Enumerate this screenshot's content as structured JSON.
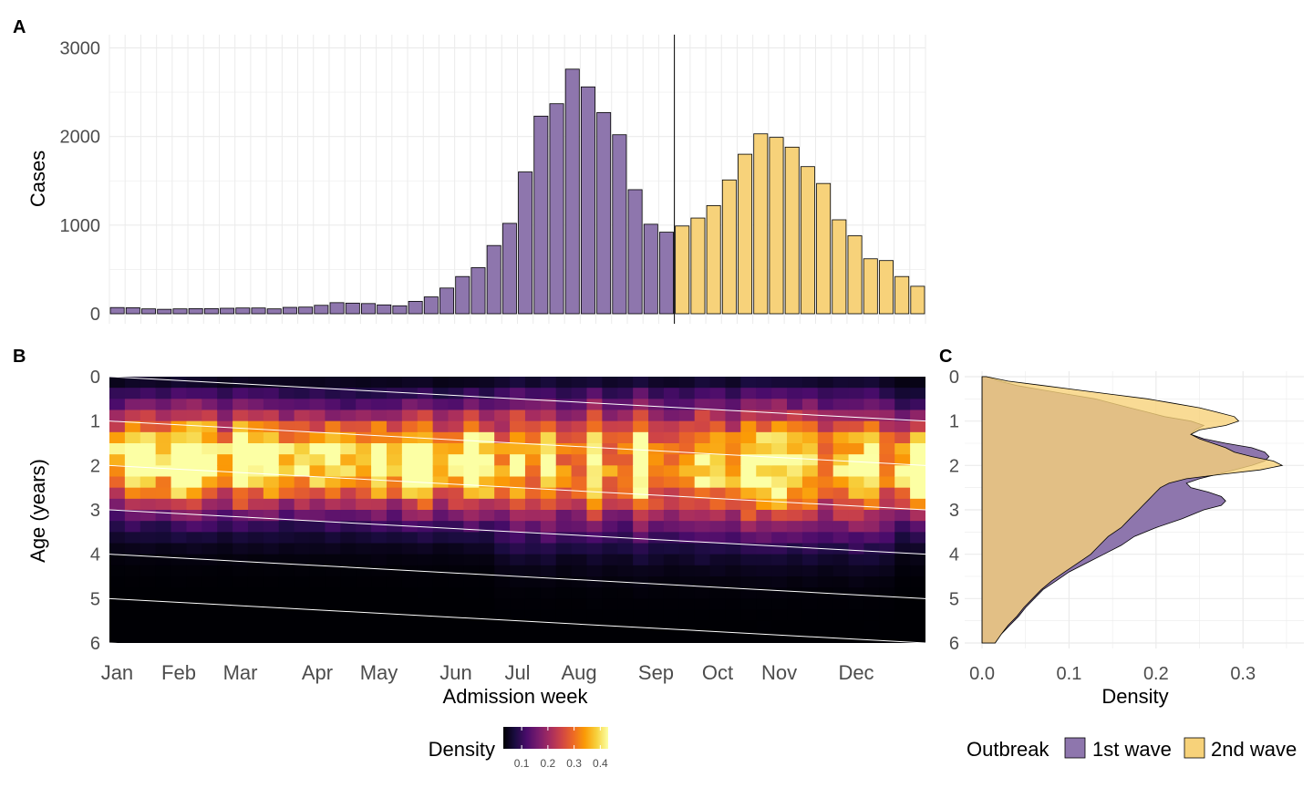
{
  "panel_labels": {
    "a": "A",
    "b": "B",
    "c": "C"
  },
  "colors": {
    "first_wave": "#8e76ad",
    "second_wave": "#f7d27a",
    "overlap": "#d8a95c",
    "divider": "#000000",
    "grid": "#ebebeb",
    "cohort_lines": "#ffffff",
    "inferno": [
      "#000004",
      "#1b0c41",
      "#4a0c6b",
      "#781c6d",
      "#a52c60",
      "#cf4446",
      "#ed6925",
      "#fb9b06",
      "#f7d13d",
      "#fcffa4"
    ]
  },
  "legend": {
    "density_title": "Density",
    "density_ticks": [
      "0.1",
      "0.2",
      "0.3",
      "0.4"
    ],
    "density_range": [
      0.03,
      0.43
    ],
    "outbreak_title": "Outbreak",
    "first_wave": "1st wave",
    "second_wave": "2nd wave"
  },
  "chart_data": [
    {
      "id": "A",
      "type": "bar",
      "ylabel": "Cases",
      "ylim": [
        0,
        3150
      ],
      "yticks": [
        0,
        1000,
        2000,
        3000
      ],
      "grid": true,
      "divider_after_week": 36,
      "series": [
        {
          "name": "1st wave",
          "values": [
            70,
            68,
            55,
            50,
            55,
            58,
            58,
            62,
            65,
            65,
            55,
            72,
            75,
            95,
            125,
            120,
            115,
            100,
            90,
            140,
            190,
            290,
            420,
            520,
            770,
            1020,
            1600,
            2230,
            2370,
            2760,
            2560,
            2270,
            2020,
            1400,
            1010,
            920
          ]
        },
        {
          "name": "2nd wave",
          "values": [
            990,
            1080,
            1220,
            1510,
            1800,
            2030,
            1990,
            1880,
            1660,
            1470,
            1060,
            880,
            620,
            600,
            420,
            310
          ]
        }
      ]
    },
    {
      "id": "B",
      "type": "heatmap",
      "xlabel": "Admission week",
      "ylabel": "Age (years)",
      "x_ticks": [
        "Jan",
        "Feb",
        "Mar",
        "Apr",
        "May",
        "Jun",
        "Jul",
        "Aug",
        "Sep",
        "Oct",
        "Nov",
        "Dec"
      ],
      "x_tick_weeks": [
        0.5,
        4.5,
        8.5,
        13.5,
        17.5,
        22.5,
        26.5,
        30.5,
        35.5,
        39.5,
        43.5,
        48.5
      ],
      "weeks": 53,
      "y_ticks": [
        0,
        1,
        2,
        3,
        4,
        5,
        6
      ],
      "ylim": [
        0,
        6
      ],
      "value": "density",
      "cohort_lines": true
    },
    {
      "id": "C",
      "type": "area",
      "orientation": "horizontal",
      "xlabel": "Density",
      "x_ticks": [
        0.0,
        0.1,
        0.2,
        0.3
      ],
      "xlim": [
        -0.02,
        0.37
      ],
      "y_ticks": [
        0,
        1,
        2,
        3,
        4,
        5,
        6
      ],
      "ylim": [
        0,
        6
      ],
      "series": [
        {
          "name": "1st wave",
          "age": [
            0,
            0.1,
            0.2,
            0.3,
            0.4,
            0.5,
            0.6,
            0.7,
            0.8,
            0.9,
            1.0,
            1.1,
            1.2,
            1.3,
            1.4,
            1.5,
            1.6,
            1.7,
            1.8,
            1.9,
            2.0,
            2.1,
            2.2,
            2.3,
            2.4,
            2.5,
            2.6,
            2.7,
            2.8,
            2.9,
            3.0,
            3.2,
            3.4,
            3.6,
            3.8,
            4.0,
            4.2,
            4.4,
            4.6,
            4.8,
            5.0,
            5.2,
            5.4,
            5.6,
            5.8,
            6.0
          ],
          "density": [
            0.005,
            0.02,
            0.04,
            0.07,
            0.1,
            0.13,
            0.15,
            0.17,
            0.19,
            0.21,
            0.24,
            0.255,
            0.245,
            0.24,
            0.255,
            0.28,
            0.31,
            0.325,
            0.33,
            0.325,
            0.31,
            0.29,
            0.27,
            0.25,
            0.235,
            0.24,
            0.26,
            0.275,
            0.28,
            0.275,
            0.255,
            0.23,
            0.2,
            0.175,
            0.16,
            0.14,
            0.12,
            0.1,
            0.085,
            0.07,
            0.06,
            0.05,
            0.042,
            0.032,
            0.022,
            0.015
          ]
        },
        {
          "name": "2nd wave",
          "age": [
            0,
            0.1,
            0.2,
            0.3,
            0.4,
            0.5,
            0.6,
            0.7,
            0.8,
            0.9,
            1.0,
            1.1,
            1.2,
            1.3,
            1.4,
            1.5,
            1.6,
            1.7,
            1.8,
            1.9,
            2.0,
            2.1,
            2.2,
            2.3,
            2.4,
            2.5,
            2.6,
            2.7,
            2.8,
            2.9,
            3.0,
            3.2,
            3.4,
            3.6,
            3.8,
            4.0,
            4.2,
            4.4,
            4.6,
            4.8,
            5.0,
            5.2,
            5.4,
            5.6,
            5.8,
            6.0
          ],
          "density": [
            0.005,
            0.03,
            0.07,
            0.11,
            0.15,
            0.19,
            0.22,
            0.25,
            0.27,
            0.29,
            0.295,
            0.28,
            0.25,
            0.24,
            0.25,
            0.265,
            0.28,
            0.29,
            0.31,
            0.335,
            0.345,
            0.32,
            0.275,
            0.235,
            0.215,
            0.205,
            0.2,
            0.195,
            0.19,
            0.185,
            0.18,
            0.17,
            0.16,
            0.145,
            0.135,
            0.125,
            0.11,
            0.095,
            0.08,
            0.068,
            0.058,
            0.048,
            0.04,
            0.03,
            0.022,
            0.015
          ]
        }
      ]
    }
  ]
}
